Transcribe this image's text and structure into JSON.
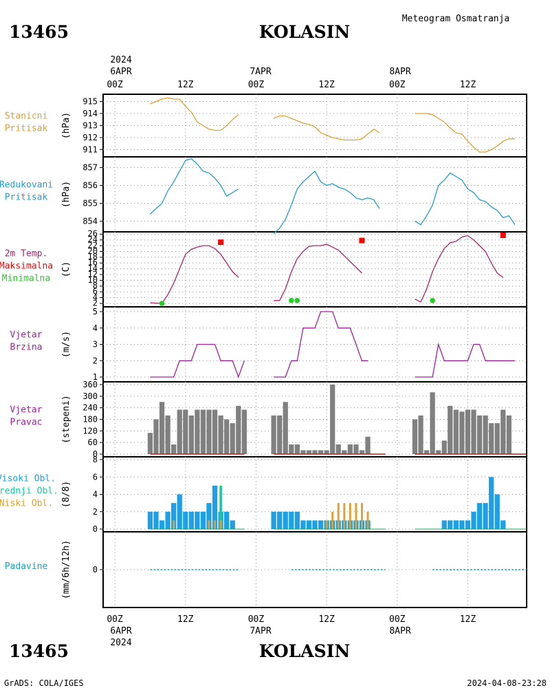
{
  "header": {
    "station_id": "13465",
    "station_name": "KOLASIN",
    "product_title": "Meteogram Osmatranja",
    "year": "2024"
  },
  "footer": {
    "credit": "GrADS: COLA/IGES",
    "timestamp": "2024-04-08-23:28"
  },
  "time_axis": {
    "top_date_labels": [
      "6APR",
      "7APR",
      "8APR"
    ],
    "bottom_date_labels": [
      "6APR",
      "7APR",
      "8APR"
    ],
    "hour_labels": [
      "00Z",
      "12Z",
      "00Z",
      "12Z",
      "00Z",
      "12Z"
    ]
  },
  "colors": {
    "pressure_station": "#e0a030",
    "pressure_reduced": "#20a0d0",
    "temperature": "#b02070",
    "tmax_marker": "#ff0000",
    "tmin_marker": "#20d020",
    "wind_speed": "#a020a0",
    "wind_dir_bar": "#808080",
    "cloud_high": "#1ea0e6",
    "cloud_mid": "#18c8a0",
    "cloud_low": "#e0a030",
    "precip": "#20a0c0"
  },
  "panels": [
    {
      "id": "station-pressure",
      "label_lines": [
        {
          "text": "Stanicni",
          "color": "#e0a030"
        },
        {
          "text": "Pritisak",
          "color": "#e0a030"
        }
      ],
      "unit": "(hPa)",
      "yticks": [
        "911",
        "912",
        "913",
        "914",
        "915"
      ]
    },
    {
      "id": "reduced-pressure",
      "label_lines": [
        {
          "text": "Redukovani",
          "color": "#20a0d0"
        },
        {
          "text": "Pritisak",
          "color": "#20a0d0"
        }
      ],
      "unit": "(hPa)",
      "yticks": [
        "854",
        "855",
        "856",
        "857"
      ]
    },
    {
      "id": "temperature",
      "label_lines": [
        {
          "text": "2m Temp.",
          "color": "#b02070"
        },
        {
          "text": "Maksimalna",
          "color": "#ff0000"
        },
        {
          "text": "Minimalna",
          "color": "#20d020"
        }
      ],
      "unit": "(C)",
      "yticks": [
        "2",
        "4",
        "6",
        "8",
        "10",
        "12",
        "14",
        "16",
        "18",
        "20",
        "22",
        "24",
        "26"
      ]
    },
    {
      "id": "wind-speed",
      "label_lines": [
        {
          "text": "Vjetar",
          "color": "#a020a0"
        },
        {
          "text": "Brzina",
          "color": "#a020a0"
        }
      ],
      "unit": "(m/s)",
      "yticks": [
        "1",
        "2",
        "3",
        "4",
        "5"
      ]
    },
    {
      "id": "wind-direction",
      "label_lines": [
        {
          "text": "Vjetar",
          "color": "#a020a0"
        },
        {
          "text": "Pravac",
          "color": "#a020a0"
        }
      ],
      "unit": "(stepeni)",
      "yticks": [
        "0",
        "60",
        "120",
        "180",
        "240",
        "300",
        "360"
      ]
    },
    {
      "id": "clouds",
      "label_lines": [
        {
          "text": "Visoki Obl.",
          "color": "#1ea0e6"
        },
        {
          "text": "Srednji Obl.",
          "color": "#18c8a0"
        },
        {
          "text": "Niski Obl.",
          "color": "#e0a030"
        }
      ],
      "unit": "(8/8)",
      "yticks": [
        "0",
        "2",
        "4",
        "6",
        "8"
      ]
    },
    {
      "id": "precipitation",
      "label_lines": [
        {
          "text": "Padavine",
          "color": "#20a0c0"
        }
      ],
      "unit": "(mm/6h/12h)",
      "yticks": [
        "0"
      ]
    }
  ],
  "chart_data": {
    "type": "line",
    "x_unit": "hours from 2024-04-06 00Z",
    "xlim": [
      -2,
      70
    ],
    "segments": [
      [
        6,
        19
      ],
      [
        27,
        43
      ],
      [
        51,
        67
      ]
    ],
    "station_pressure": {
      "ylim": [
        910.4,
        915.6
      ],
      "points": [
        [
          6,
          914.8
        ],
        [
          8,
          915.2
        ],
        [
          9,
          915.3
        ],
        [
          10,
          915.2
        ],
        [
          11,
          915.2
        ],
        [
          12,
          914.6
        ],
        [
          13,
          914.1
        ],
        [
          14,
          913.3
        ],
        [
          15,
          913.0
        ],
        [
          16,
          912.7
        ],
        [
          17,
          912.6
        ],
        [
          18,
          912.6
        ],
        [
          19,
          913.0
        ],
        [
          20,
          913.5
        ],
        [
          21,
          913.9
        ],
        [
          27,
          913.6
        ],
        [
          28,
          913.8
        ],
        [
          29,
          913.8
        ],
        [
          30,
          913.6
        ],
        [
          31,
          913.4
        ],
        [
          32,
          913.2
        ],
        [
          33,
          913.1
        ],
        [
          34,
          912.9
        ],
        [
          35,
          912.4
        ],
        [
          36,
          912.2
        ],
        [
          37,
          912.0
        ],
        [
          38,
          911.9
        ],
        [
          39,
          911.8
        ],
        [
          40,
          911.8
        ],
        [
          41,
          911.8
        ],
        [
          42,
          911.9
        ],
        [
          43,
          912.3
        ],
        [
          44,
          912.7
        ],
        [
          45,
          912.4
        ],
        [
          51,
          914.0
        ],
        [
          52,
          914.0
        ],
        [
          53,
          914.0
        ],
        [
          54,
          913.9
        ],
        [
          55,
          913.6
        ],
        [
          56,
          913.3
        ],
        [
          57,
          912.8
        ],
        [
          58,
          912.4
        ],
        [
          59,
          912.3
        ],
        [
          60,
          911.7
        ],
        [
          61,
          911.2
        ],
        [
          62,
          910.8
        ],
        [
          63,
          910.8
        ],
        [
          64,
          911.0
        ],
        [
          65,
          911.3
        ],
        [
          66,
          911.7
        ],
        [
          67,
          911.9
        ],
        [
          68,
          911.9
        ]
      ]
    },
    "reduced_pressure": {
      "ylim": [
        853.4,
        857.6
      ],
      "points": [
        [
          6,
          854.4
        ],
        [
          8,
          855.0
        ],
        [
          9,
          855.7
        ],
        [
          10,
          856.2
        ],
        [
          11,
          856.8
        ],
        [
          12,
          857.4
        ],
        [
          13,
          857.5
        ],
        [
          14,
          857.2
        ],
        [
          15,
          856.8
        ],
        [
          16,
          856.7
        ],
        [
          17,
          856.4
        ],
        [
          18,
          856.0
        ],
        [
          19,
          855.4
        ],
        [
          20,
          855.6
        ],
        [
          21,
          855.8
        ],
        [
          27,
          853.3
        ],
        [
          28,
          853.6
        ],
        [
          29,
          854.1
        ],
        [
          30,
          854.9
        ],
        [
          31,
          855.8
        ],
        [
          32,
          856.2
        ],
        [
          33,
          856.5
        ],
        [
          34,
          856.8
        ],
        [
          35,
          856.2
        ],
        [
          36,
          856.0
        ],
        [
          37,
          856.1
        ],
        [
          38,
          855.9
        ],
        [
          39,
          855.8
        ],
        [
          40,
          855.6
        ],
        [
          41,
          855.3
        ],
        [
          42,
          855.2
        ],
        [
          43,
          855.3
        ],
        [
          44,
          855.2
        ],
        [
          45,
          854.7
        ],
        [
          51,
          854.0
        ],
        [
          52,
          853.8
        ],
        [
          53,
          854.3
        ],
        [
          54,
          854.9
        ],
        [
          55,
          856.0
        ],
        [
          56,
          856.3
        ],
        [
          57,
          856.7
        ],
        [
          58,
          856.5
        ],
        [
          59,
          856.3
        ],
        [
          60,
          855.8
        ],
        [
          61,
          855.6
        ],
        [
          62,
          855.2
        ],
        [
          63,
          855.1
        ],
        [
          64,
          854.8
        ],
        [
          65,
          854.6
        ],
        [
          66,
          854.2
        ],
        [
          67,
          854.3
        ],
        [
          68,
          853.8
        ]
      ]
    },
    "temperature": {
      "ylim": [
        0.8,
        26.8
      ],
      "points": [
        [
          6,
          2.2
        ],
        [
          8,
          2.0
        ],
        [
          9,
          5.0
        ],
        [
          10,
          9.0
        ],
        [
          11,
          14.0
        ],
        [
          12,
          19.0
        ],
        [
          13,
          20.8
        ],
        [
          14,
          21.5
        ],
        [
          15,
          22.0
        ],
        [
          16,
          22.0
        ],
        [
          17,
          21.0
        ],
        [
          18,
          19.0
        ],
        [
          19,
          16.0
        ],
        [
          20,
          13.0
        ],
        [
          21,
          11.0
        ],
        [
          27,
          3.0
        ],
        [
          28,
          3.0
        ],
        [
          29,
          7.0
        ],
        [
          30,
          13.0
        ],
        [
          31,
          17.5
        ],
        [
          32,
          20.0
        ],
        [
          33,
          21.8
        ],
        [
          34,
          22.0
        ],
        [
          35,
          22.0
        ],
        [
          36,
          22.5
        ],
        [
          37,
          21.5
        ],
        [
          38,
          20.5
        ],
        [
          39,
          18.5
        ],
        [
          40,
          16.5
        ],
        [
          41,
          14.5
        ],
        [
          42,
          12.5
        ],
        [
          51,
          3.5
        ],
        [
          52,
          2.5
        ],
        [
          53,
          7.0
        ],
        [
          54,
          13.0
        ],
        [
          55,
          17.5
        ],
        [
          56,
          21.0
        ],
        [
          57,
          23.0
        ],
        [
          58,
          23.5
        ],
        [
          59,
          25.0
        ],
        [
          60,
          25.5
        ],
        [
          61,
          24.0
        ],
        [
          62,
          22.0
        ],
        [
          63,
          20.0
        ],
        [
          64,
          16.0
        ],
        [
          65,
          12.5
        ],
        [
          66,
          11.0
        ]
      ]
    },
    "tmax": [
      [
        18,
        23.2
      ],
      [
        42,
        23.8
      ],
      [
        66,
        25.6
      ]
    ],
    "tmin": [
      [
        8,
        2.0
      ],
      [
        30,
        3.0
      ],
      [
        31,
        3.0
      ],
      [
        54,
        3.0
      ]
    ],
    "wind_speed": {
      "ylim": [
        1,
        5
      ],
      "points": [
        [
          6,
          1
        ],
        [
          10,
          1
        ],
        [
          11,
          2
        ],
        [
          13,
          2
        ],
        [
          14,
          3
        ],
        [
          17,
          3
        ],
        [
          18,
          2
        ],
        [
          20,
          2
        ],
        [
          21,
          1
        ],
        [
          22,
          2
        ],
        [
          27,
          1
        ],
        [
          29,
          1
        ],
        [
          30,
          2
        ],
        [
          31,
          2
        ],
        [
          32,
          4
        ],
        [
          34,
          4
        ],
        [
          35,
          5
        ],
        [
          37,
          5
        ],
        [
          38,
          4
        ],
        [
          40,
          4
        ],
        [
          41,
          3
        ],
        [
          42,
          2
        ],
        [
          43,
          2
        ],
        [
          51,
          1
        ],
        [
          54,
          1
        ],
        [
          55,
          3
        ],
        [
          56,
          2
        ],
        [
          60,
          2
        ],
        [
          61,
          3
        ],
        [
          62,
          3
        ],
        [
          63,
          2
        ],
        [
          68,
          2
        ]
      ]
    },
    "wind_direction": {
      "ylim": [
        0,
        360
      ],
      "bars": [
        [
          6,
          110
        ],
        [
          7,
          180
        ],
        [
          8,
          270
        ],
        [
          9,
          200
        ],
        [
          10,
          50
        ],
        [
          11,
          230
        ],
        [
          12,
          230
        ],
        [
          13,
          200
        ],
        [
          14,
          230
        ],
        [
          15,
          230
        ],
        [
          16,
          230
        ],
        [
          17,
          230
        ],
        [
          18,
          200
        ],
        [
          19,
          180
        ],
        [
          20,
          160
        ],
        [
          21,
          250
        ],
        [
          22,
          230
        ],
        [
          27,
          200
        ],
        [
          28,
          200
        ],
        [
          29,
          270
        ],
        [
          30,
          50
        ],
        [
          31,
          50
        ],
        [
          32,
          20
        ],
        [
          33,
          20
        ],
        [
          34,
          20
        ],
        [
          35,
          20
        ],
        [
          36,
          20
        ],
        [
          37,
          360
        ],
        [
          38,
          50
        ],
        [
          39,
          20
        ],
        [
          40,
          50
        ],
        [
          41,
          50
        ],
        [
          42,
          20
        ],
        [
          43,
          90
        ],
        [
          51,
          180
        ],
        [
          52,
          200
        ],
        [
          53,
          20
        ],
        [
          54,
          320
        ],
        [
          55,
          20
        ],
        [
          56,
          70
        ],
        [
          57,
          250
        ],
        [
          58,
          230
        ],
        [
          59,
          220
        ],
        [
          60,
          230
        ],
        [
          61,
          230
        ],
        [
          62,
          200
        ],
        [
          63,
          200
        ],
        [
          64,
          160
        ],
        [
          65,
          160
        ],
        [
          66,
          230
        ],
        [
          67,
          200
        ]
      ]
    },
    "cloud_high": {
      "ylim": [
        0,
        8
      ],
      "bars": [
        [
          6,
          2
        ],
        [
          7,
          2
        ],
        [
          8,
          1
        ],
        [
          9,
          2
        ],
        [
          10,
          3
        ],
        [
          11,
          4
        ],
        [
          12,
          2
        ],
        [
          13,
          2
        ],
        [
          14,
          2
        ],
        [
          15,
          2
        ],
        [
          16,
          3
        ],
        [
          17,
          5
        ],
        [
          18,
          2
        ],
        [
          19,
          2
        ],
        [
          20,
          1
        ],
        [
          27,
          2
        ],
        [
          28,
          2
        ],
        [
          29,
          2
        ],
        [
          30,
          2
        ],
        [
          31,
          2
        ],
        [
          32,
          1
        ],
        [
          33,
          1
        ],
        [
          34,
          1
        ],
        [
          35,
          1
        ],
        [
          36,
          1
        ],
        [
          37,
          1
        ],
        [
          38,
          1
        ],
        [
          39,
          1
        ],
        [
          40,
          1
        ],
        [
          41,
          1
        ],
        [
          42,
          1
        ],
        [
          43,
          1
        ],
        [
          56,
          1
        ],
        [
          57,
          1
        ],
        [
          58,
          1
        ],
        [
          59,
          1
        ],
        [
          60,
          1
        ],
        [
          61,
          2
        ],
        [
          62,
          3
        ],
        [
          63,
          3
        ],
        [
          64,
          6
        ],
        [
          65,
          4
        ],
        [
          66,
          1
        ]
      ]
    },
    "cloud_mid": {
      "ylim": [
        0,
        8
      ],
      "bars": [
        [
          18,
          5
        ]
      ]
    },
    "cloud_low": {
      "ylim": [
        0,
        8
      ],
      "bars": [
        [
          10,
          1
        ],
        [
          16,
          1
        ],
        [
          17,
          1
        ],
        [
          18,
          1
        ],
        [
          36,
          1
        ],
        [
          37,
          2
        ],
        [
          38,
          3
        ],
        [
          39,
          3
        ],
        [
          40,
          3
        ],
        [
          41,
          3
        ],
        [
          42,
          3
        ],
        [
          43,
          2
        ]
      ]
    },
    "precipitation": {
      "value": 0,
      "segments": [
        [
          6,
          21
        ],
        [
          30,
          46
        ],
        [
          54,
          70
        ]
      ]
    }
  }
}
